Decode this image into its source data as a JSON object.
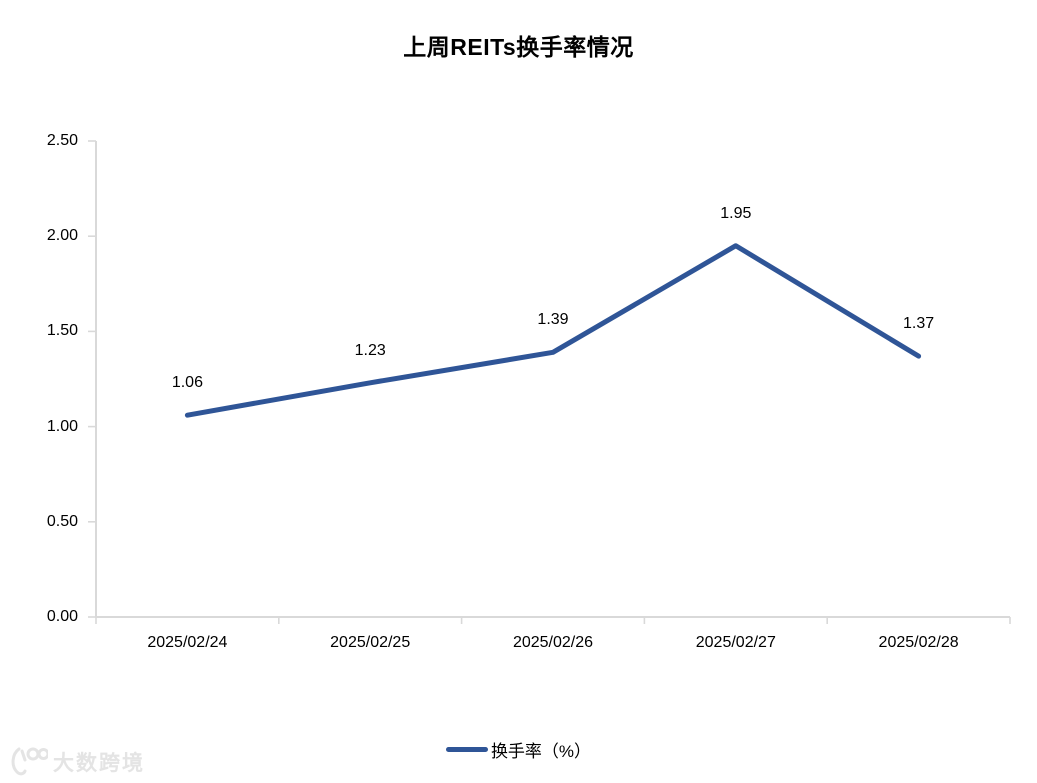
{
  "chart_data": {
    "type": "line",
    "title": "上周REITs换手率情况",
    "categories": [
      "2025/02/24",
      "2025/02/25",
      "2025/02/26",
      "2025/02/27",
      "2025/02/28"
    ],
    "series": [
      {
        "name": "换手率（%）",
        "values": [
          1.06,
          1.23,
          1.39,
          1.95,
          1.37
        ],
        "color": "#2F5597"
      }
    ],
    "data_labels": [
      "1.06",
      "1.23",
      "1.39",
      "1.95",
      "1.37"
    ],
    "ylim": [
      0,
      2.5
    ],
    "y_tick_step": 0.5,
    "y_tick_labels": [
      "0.00",
      "0.50",
      "1.00",
      "1.50",
      "2.00",
      "2.50"
    ],
    "xlabel": "",
    "ylabel": "",
    "grid": false,
    "legend_position": "bottom",
    "axis_color": "#D9D9D9"
  },
  "watermark": {
    "text": "大数跨境"
  }
}
